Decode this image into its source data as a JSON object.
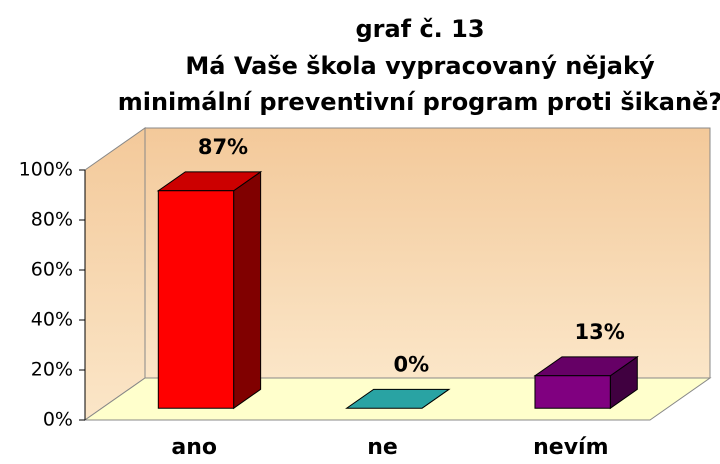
{
  "chart_data": {
    "type": "bar3d",
    "title": [
      "graf č. 13",
      "Má Vaše škola vypracovaný nějaký",
      "minimální preventivní program proti šikaně?"
    ],
    "categories": [
      "ano",
      "ne",
      "nevím"
    ],
    "values": [
      87,
      0,
      13
    ],
    "value_labels": [
      "87%",
      "0%",
      "13%"
    ],
    "colors": [
      "#ff0000",
      "#33cccc",
      "#800080"
    ],
    "ylim": [
      0,
      100
    ],
    "yticks": [
      {
        "value": 0,
        "label": "0%"
      },
      {
        "value": 20,
        "label": "20%"
      },
      {
        "value": 40,
        "label": "40%"
      },
      {
        "value": 60,
        "label": "60%"
      },
      {
        "value": 80,
        "label": "80%"
      },
      {
        "value": 100,
        "label": "100%"
      }
    ]
  }
}
